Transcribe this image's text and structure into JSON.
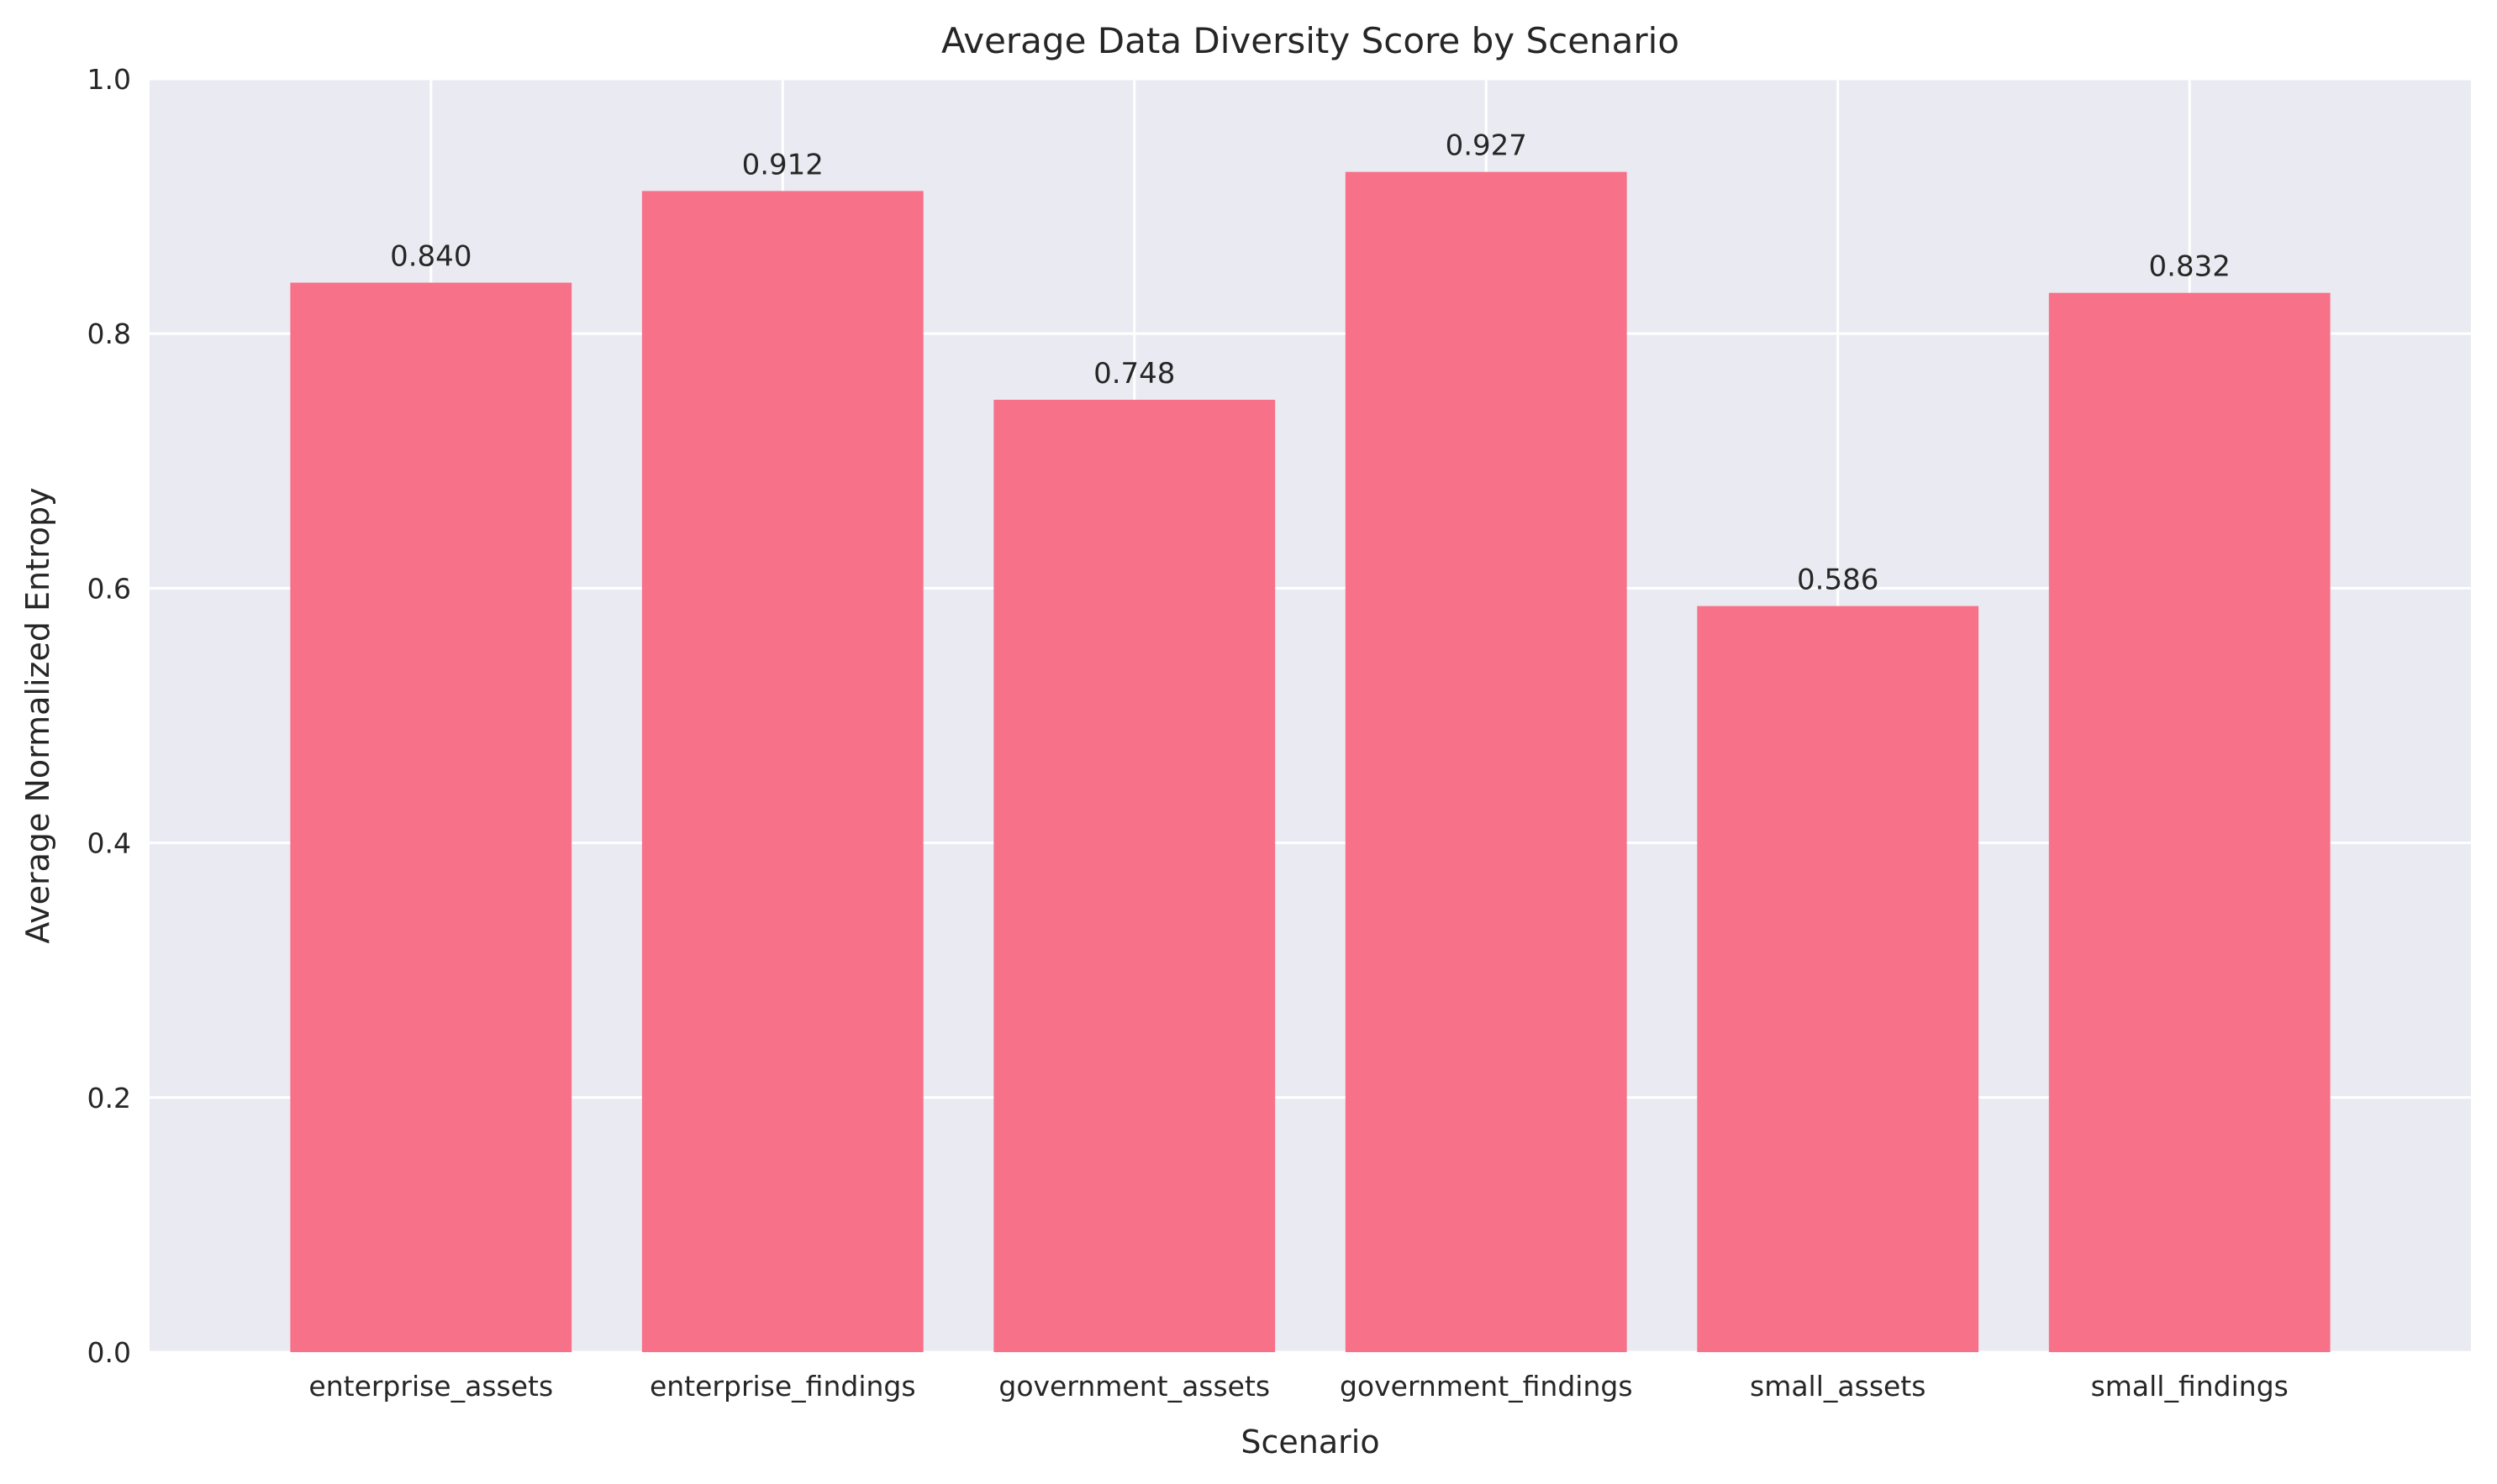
{
  "chart_data": {
    "type": "bar",
    "title": "Average Data Diversity Score by Scenario",
    "xlabel": "Scenario",
    "ylabel": "Average Normalized Entropy",
    "categories": [
      "enterprise_assets",
      "enterprise_findings",
      "government_assets",
      "government_findings",
      "small_assets",
      "small_findings"
    ],
    "values": [
      0.84,
      0.912,
      0.748,
      0.927,
      0.586,
      0.832
    ],
    "value_labels": [
      "0.840",
      "0.912",
      "0.748",
      "0.927",
      "0.586",
      "0.832"
    ],
    "ylim": [
      0,
      1.0
    ],
    "yticks": [
      "0.0",
      "0.2",
      "0.4",
      "0.6",
      "0.8",
      "1.0"
    ],
    "ytick_values": [
      0,
      0.2,
      0.4,
      0.6,
      0.8,
      1.0
    ],
    "grid": true,
    "bar_color": "#f77189",
    "plot_background": "#eaeaf2",
    "grid_color": "#ffffff"
  }
}
